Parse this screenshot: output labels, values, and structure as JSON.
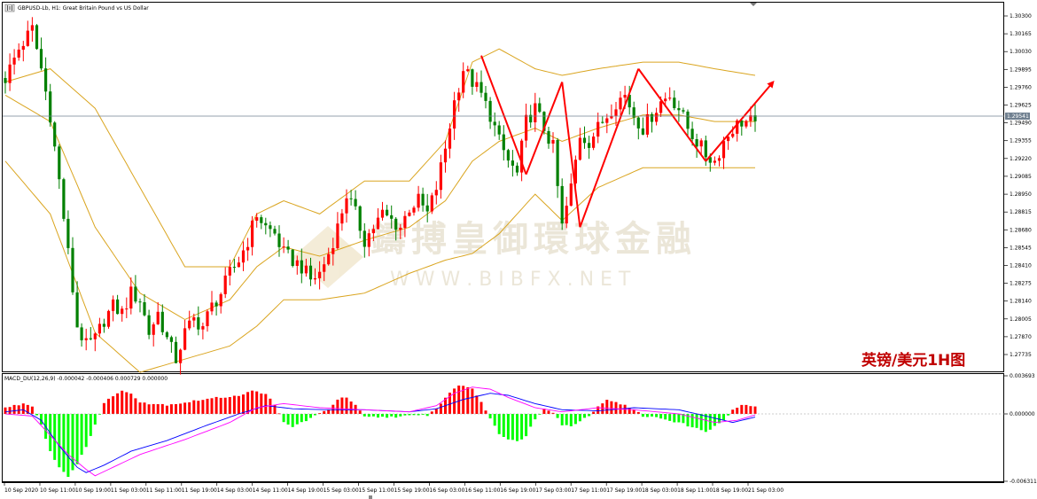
{
  "header": {
    "symbol_title": "GBPUSD-Lb, H1: Great Britain Pound vs US Dollar"
  },
  "annotation": {
    "text": "英镑/美元1H图",
    "color": "#c00000"
  },
  "watermark": {
    "cn": "鑄搏皇御環球金融",
    "en": "W W W . B I B F X . N E T"
  },
  "colors": {
    "up": "#ff0000",
    "down": "#008000",
    "band": "#daa520",
    "macd_up": "#ff0000",
    "macd_down": "#00ff00",
    "macd_main": "#0000ff",
    "macd_signal": "#ff00ff",
    "price_line": "#708090"
  },
  "chart_data": [
    {
      "type": "candlestick",
      "title": "GBPUSD-Lb, H1: Great Britain Pound vs US Dollar",
      "ylim": [
        1.2661,
        1.304
      ],
      "y_ticks": [
        "1.30300",
        "1.30165",
        "1.30030",
        "1.29895",
        "1.29760",
        "1.29625",
        "1.29490",
        "1.29355",
        "1.29220",
        "1.29085",
        "1.28950",
        "1.28815",
        "1.28680",
        "1.28545",
        "1.28410",
        "1.28275",
        "1.28140",
        "1.28005",
        "1.27870",
        "1.27735"
      ],
      "current_price": "1.29541",
      "x_ticks": [
        "10 Sep 2020",
        "10 Sep 11:00",
        "10 Sep 19:00",
        "11 Sep 03:00",
        "11 Sep 11:00",
        "11 Sep 19:00",
        "14 Sep 03:00",
        "14 Sep 11:00",
        "14 Sep 19:00",
        "15 Sep 03:00",
        "15 Sep 11:00",
        "15 Sep 19:00",
        "16 Sep 03:00",
        "16 Sep 11:00",
        "16 Sep 19:00",
        "17 Sep 03:00",
        "17 Sep 11:00",
        "17 Sep 19:00",
        "18 Sep 03:00",
        "18 Sep 11:00",
        "18 Sep 19:00",
        "21 Sep 03:00"
      ],
      "overlay": "Bollinger Bands",
      "close_path": [
        [
          0,
          1.2983
        ],
        [
          3,
          1.3005
        ],
        [
          6,
          1.302
        ],
        [
          8,
          1.299
        ],
        [
          10,
          1.2955
        ],
        [
          12,
          1.2905
        ],
        [
          14,
          1.285
        ],
        [
          16,
          1.2795
        ],
        [
          18,
          1.278
        ],
        [
          20,
          1.2785
        ],
        [
          22,
          1.28
        ],
        [
          24,
          1.281
        ],
        [
          26,
          1.2805
        ],
        [
          28,
          1.282
        ],
        [
          30,
          1.2815
        ],
        [
          32,
          1.279
        ],
        [
          34,
          1.2805
        ],
        [
          36,
          1.2785
        ],
        [
          38,
          1.277
        ],
        [
          40,
          1.279
        ],
        [
          42,
          1.28
        ],
        [
          44,
          1.2795
        ],
        [
          46,
          1.281
        ],
        [
          48,
          1.282
        ],
        [
          50,
          1.2835
        ],
        [
          52,
          1.2845
        ],
        [
          54,
          1.286
        ],
        [
          56,
          1.288
        ],
        [
          58,
          1.287
        ],
        [
          60,
          1.2865
        ],
        [
          62,
          1.285
        ],
        [
          64,
          1.2845
        ],
        [
          66,
          1.284
        ],
        [
          68,
          1.283
        ],
        [
          70,
          1.2835
        ],
        [
          72,
          1.285
        ],
        [
          74,
          1.287
        ],
        [
          76,
          1.2895
        ],
        [
          78,
          1.288
        ],
        [
          80,
          1.286
        ],
        [
          82,
          1.287
        ],
        [
          84,
          1.288
        ],
        [
          86,
          1.2875
        ],
        [
          88,
          1.287
        ],
        [
          90,
          1.2885
        ],
        [
          92,
          1.289
        ],
        [
          94,
          1.288
        ],
        [
          96,
          1.29
        ],
        [
          98,
          1.293
        ],
        [
          100,
          1.2965
        ],
        [
          102,
          1.299
        ],
        [
          104,
          1.298
        ],
        [
          106,
          1.297
        ],
        [
          108,
          1.2955
        ],
        [
          110,
          1.2935
        ],
        [
          112,
          1.292
        ],
        [
          114,
          1.291
        ],
        [
          116,
          1.295
        ],
        [
          118,
          1.296
        ],
        [
          120,
          1.2945
        ],
        [
          122,
          1.293
        ],
        [
          124,
          1.287
        ],
        [
          126,
          1.29
        ],
        [
          128,
          1.294
        ],
        [
          130,
          1.2935
        ],
        [
          132,
          1.2945
        ],
        [
          134,
          1.2955
        ],
        [
          136,
          1.2965
        ],
        [
          138,
          1.297
        ],
        [
          140,
          1.2955
        ],
        [
          142,
          1.2945
        ],
        [
          144,
          1.2955
        ],
        [
          146,
          1.2965
        ],
        [
          148,
          1.297
        ],
        [
          150,
          1.296
        ],
        [
          152,
          1.2945
        ],
        [
          154,
          1.2935
        ],
        [
          156,
          1.2925
        ],
        [
          158,
          1.292
        ],
        [
          160,
          1.2935
        ],
        [
          162,
          1.2945
        ],
        [
          164,
          1.295
        ],
        [
          166,
          1.295
        ],
        [
          167,
          1.2945
        ]
      ],
      "bollinger_path": [
        [
          0,
          1.298,
          1.297,
          1.292
        ],
        [
          10,
          1.299,
          1.295,
          1.288
        ],
        [
          20,
          1.296,
          1.287,
          1.279
        ],
        [
          30,
          1.29,
          1.282,
          1.276
        ],
        [
          40,
          1.284,
          1.28,
          1.277
        ],
        [
          50,
          1.284,
          1.2815,
          1.278
        ],
        [
          56,
          1.288,
          1.284,
          1.2795
        ],
        [
          62,
          1.289,
          1.2855,
          1.2815
        ],
        [
          70,
          1.288,
          1.2848,
          1.2815
        ],
        [
          80,
          1.2905,
          1.286,
          1.282
        ],
        [
          90,
          1.2905,
          1.287,
          1.2835
        ],
        [
          98,
          1.2935,
          1.289,
          1.2845
        ],
        [
          104,
          1.2995,
          1.292,
          1.285
        ],
        [
          110,
          1.3005,
          1.2935,
          1.2865
        ],
        [
          118,
          1.299,
          1.2945,
          1.2895
        ],
        [
          124,
          1.2985,
          1.2935,
          1.2875
        ],
        [
          132,
          1.299,
          1.2945,
          1.29
        ],
        [
          142,
          1.2995,
          1.2955,
          1.2915
        ],
        [
          150,
          1.2995,
          1.2955,
          1.2915
        ],
        [
          158,
          1.299,
          1.295,
          1.2915
        ],
        [
          167,
          1.2985,
          1.295,
          1.2915
        ]
      ],
      "trend_lines": [
        [
          [
            106,
            1.3
          ],
          [
            116,
            1.291
          ]
        ],
        [
          [
            116,
            1.291
          ],
          [
            124,
            1.298
          ]
        ],
        [
          [
            124,
            1.298
          ],
          [
            128,
            1.287
          ]
        ],
        [
          [
            128,
            1.287
          ],
          [
            141,
            1.299
          ]
        ],
        [
          [
            141,
            1.299
          ],
          [
            156,
            1.292
          ]
        ],
        [
          [
            156,
            1.292
          ],
          [
            171,
            1.298
          ]
        ]
      ]
    },
    {
      "type": "macd_histogram",
      "title": "MACD_DU(12,26,9) -0.000042 -0.000406 0.000729 0.000000",
      "ylim": [
        -0.006311,
        0.003693
      ],
      "y_ticks": [
        "0.003693",
        "0.000000",
        "-0.006311"
      ],
      "histogram_path": [
        [
          0,
          0.0006
        ],
        [
          4,
          0.001
        ],
        [
          6,
          0.0008
        ],
        [
          8,
          -0.001
        ],
        [
          10,
          -0.0035
        ],
        [
          12,
          -0.005
        ],
        [
          14,
          -0.0058
        ],
        [
          16,
          -0.0048
        ],
        [
          18,
          -0.003
        ],
        [
          20,
          -0.001
        ],
        [
          22,
          0.001
        ],
        [
          24,
          0.0018
        ],
        [
          26,
          0.0022
        ],
        [
          28,
          0.002
        ],
        [
          30,
          0.0012
        ],
        [
          32,
          0.001
        ],
        [
          36,
          0.0009
        ],
        [
          40,
          0.0011
        ],
        [
          44,
          0.0014
        ],
        [
          48,
          0.0016
        ],
        [
          52,
          0.0018
        ],
        [
          55,
          0.0022
        ],
        [
          58,
          0.002
        ],
        [
          60,
          0.0008
        ],
        [
          62,
          -0.0008
        ],
        [
          64,
          -0.0012
        ],
        [
          66,
          -0.0008
        ],
        [
          68,
          -0.0004
        ],
        [
          70,
          0.0
        ],
        [
          72,
          0.0005
        ],
        [
          74,
          0.0014
        ],
        [
          76,
          0.0016
        ],
        [
          78,
          0.0008
        ],
        [
          80,
          -0.0003
        ],
        [
          84,
          -0.0003
        ],
        [
          90,
          -0.0002
        ],
        [
          94,
          -0.0001
        ],
        [
          96,
          0.0005
        ],
        [
          98,
          0.0016
        ],
        [
          100,
          0.0025
        ],
        [
          102,
          0.0028
        ],
        [
          104,
          0.0024
        ],
        [
          106,
          0.0012
        ],
        [
          108,
          -0.0004
        ],
        [
          110,
          -0.0018
        ],
        [
          112,
          -0.0024
        ],
        [
          114,
          -0.0026
        ],
        [
          116,
          -0.002
        ],
        [
          118,
          -0.0005
        ],
        [
          120,
          0.0006
        ],
        [
          122,
          0.0002
        ],
        [
          124,
          -0.001
        ],
        [
          126,
          -0.0012
        ],
        [
          128,
          -0.0006
        ],
        [
          130,
          -0.0002
        ],
        [
          132,
          0.0008
        ],
        [
          134,
          0.0013
        ],
        [
          136,
          0.0012
        ],
        [
          138,
          0.0008
        ],
        [
          140,
          0.0004
        ],
        [
          142,
          -0.0002
        ],
        [
          146,
          -0.0004
        ],
        [
          150,
          -0.0008
        ],
        [
          154,
          -0.0014
        ],
        [
          156,
          -0.0016
        ],
        [
          158,
          -0.0012
        ],
        [
          160,
          -0.0006
        ],
        [
          162,
          0.0004
        ],
        [
          164,
          0.0008
        ],
        [
          166,
          0.0008
        ],
        [
          167,
          0.0007
        ]
      ],
      "main_path": [
        [
          0,
          0.0002
        ],
        [
          4,
          0.0004
        ],
        [
          8,
          -0.0006
        ],
        [
          12,
          -0.003
        ],
        [
          16,
          -0.005
        ],
        [
          18,
          -0.0055
        ],
        [
          22,
          -0.0048
        ],
        [
          28,
          -0.0035
        ],
        [
          36,
          -0.0025
        ],
        [
          44,
          -0.0012
        ],
        [
          52,
          0.0
        ],
        [
          58,
          0.0008
        ],
        [
          64,
          0.0005
        ],
        [
          72,
          0.0004
        ],
        [
          80,
          0.0004
        ],
        [
          90,
          0.0002
        ],
        [
          96,
          0.0005
        ],
        [
          102,
          0.0014
        ],
        [
          108,
          0.002
        ],
        [
          112,
          0.0018
        ],
        [
          118,
          0.001
        ],
        [
          124,
          0.0004
        ],
        [
          132,
          0.0003
        ],
        [
          140,
          0.0006
        ],
        [
          150,
          0.0004
        ],
        [
          158,
          -0.0004
        ],
        [
          162,
          -0.0008
        ],
        [
          167,
          -0.0003
        ]
      ],
      "signal_path": [
        [
          0,
          0.0
        ],
        [
          6,
          -0.0002
        ],
        [
          10,
          -0.002
        ],
        [
          14,
          -0.0038
        ],
        [
          18,
          -0.0052
        ],
        [
          20,
          -0.0058
        ],
        [
          24,
          -0.005
        ],
        [
          30,
          -0.0038
        ],
        [
          40,
          -0.0024
        ],
        [
          50,
          -0.0008
        ],
        [
          56,
          0.0006
        ],
        [
          62,
          0.001
        ],
        [
          70,
          0.0006
        ],
        [
          80,
          0.0004
        ],
        [
          90,
          0.0002
        ],
        [
          96,
          0.0008
        ],
        [
          100,
          0.002
        ],
        [
          104,
          0.0026
        ],
        [
          108,
          0.0024
        ],
        [
          112,
          0.0016
        ],
        [
          118,
          0.0006
        ],
        [
          124,
          0.0002
        ],
        [
          132,
          0.0006
        ],
        [
          140,
          0.0004
        ],
        [
          150,
          0.0
        ],
        [
          158,
          -0.0008
        ],
        [
          163,
          -0.0006
        ],
        [
          167,
          -0.0001
        ]
      ]
    }
  ]
}
